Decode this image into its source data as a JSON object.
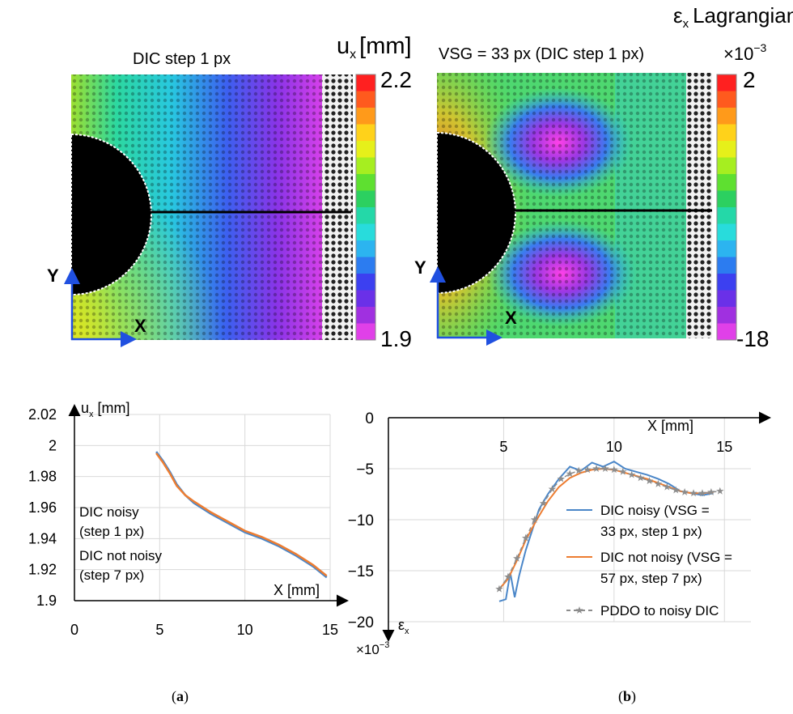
{
  "panel_a_map": {
    "title": "DIC step 1 px",
    "colorbar_label": "u",
    "colorbar_label_sub": "x",
    "colorbar_unit": "[mm]",
    "colorbar_max": "2.2",
    "colorbar_min": "1.9",
    "axis_y": "Y",
    "axis_x": "X"
  },
  "panel_b_map": {
    "title": "VSG = 33 px (DIC step 1 px)",
    "quantity": "ε",
    "quantity_sub": "x",
    "quantity_name": "Lagrangian",
    "multiplier": "×10",
    "multiplier_exp": "−3",
    "colorbar_max": "2",
    "colorbar_min": "-18",
    "axis_y": "Y",
    "axis_x": "X"
  },
  "colormap": [
    "#ff2020",
    "#ff5a1e",
    "#ff9a1a",
    "#ffd21a",
    "#e6f01a",
    "#a6ee20",
    "#5ee030",
    "#2cd060",
    "#24d8a8",
    "#28dcdc",
    "#2cb4f0",
    "#2c7cf0",
    "#3c40f0",
    "#6a30e8",
    "#a030e0",
    "#e040e8"
  ],
  "chart_data": [
    {
      "type": "line",
      "xlabel": "X [mm]",
      "ylabel": "u",
      "ylabel_sub": "x",
      "ylabel_unit": " [mm]",
      "xlim": [
        0,
        15
      ],
      "ylim": [
        1.9,
        2.02
      ],
      "xticks": [
        "0",
        "5",
        "10",
        "15"
      ],
      "yticks": [
        "2.02",
        "2",
        "1.98",
        "1.96",
        "1.94",
        "1.92",
        "1.9"
      ],
      "series": [
        {
          "name": "DIC noisy",
          "name2": "(step 1 px)",
          "color": "#4a86c8",
          "x": [
            4.8,
            5.2,
            5.6,
            6.0,
            6.5,
            7.0,
            8.0,
            9.0,
            10.0,
            11.0,
            12.0,
            13.0,
            14.0,
            14.8
          ],
          "y": [
            1.996,
            1.99,
            1.983,
            1.975,
            1.968,
            1.963,
            1.956,
            1.95,
            1.944,
            1.94,
            1.935,
            1.929,
            1.922,
            1.915
          ]
        },
        {
          "name": "DIC not noisy",
          "name2": "(step 7 px)",
          "color": "#ed7d31",
          "x": [
            4.8,
            5.2,
            5.6,
            6.0,
            6.5,
            7.0,
            8.0,
            9.0,
            10.0,
            11.0,
            12.0,
            13.0,
            14.0,
            14.8
          ],
          "y": [
            1.995,
            1.989,
            1.982,
            1.974,
            1.968,
            1.964,
            1.957,
            1.951,
            1.945,
            1.941,
            1.936,
            1.93,
            1.923,
            1.916
          ]
        }
      ],
      "grid": true,
      "legend_position": "lower-left"
    },
    {
      "type": "line",
      "xlabel": "X  [mm]",
      "ylabel": "ε",
      "ylabel_sub": "x",
      "multiplier": "×10",
      "multiplier_exp": "−3",
      "xlim": [
        0,
        15
      ],
      "ylim": [
        -20,
        0
      ],
      "xticks": [
        "5",
        "10",
        "15"
      ],
      "yticks": [
        "0",
        "-5",
        "-10",
        "-15",
        "-20"
      ],
      "series": [
        {
          "name": "DIC noisy (VSG =",
          "name2": "33 px, step 1 px)",
          "color": "#4a86c8",
          "x": [
            4.8,
            5.1,
            5.3,
            5.5,
            5.7,
            6.0,
            6.3,
            6.6,
            7.0,
            7.5,
            8.0,
            8.5,
            9.0,
            9.5,
            10.0,
            10.5,
            11.0,
            11.5,
            12.0,
            12.5,
            13.0,
            13.5,
            14.0,
            14.5
          ],
          "y": [
            -18.0,
            -17.8,
            -15.2,
            -17.6,
            -15.5,
            -13.0,
            -11.0,
            -9.0,
            -7.5,
            -6.0,
            -4.8,
            -5.2,
            -4.4,
            -4.8,
            -4.3,
            -5.0,
            -5.3,
            -5.6,
            -6.0,
            -6.5,
            -7.2,
            -7.4,
            -7.6,
            -7.4
          ]
        },
        {
          "name": "DIC not noisy (VSG =",
          "name2": "57 px, step 7 px)",
          "color": "#ed7d31",
          "x": [
            4.8,
            5.2,
            5.6,
            6.0,
            6.5,
            7.0,
            7.5,
            8.0,
            8.5,
            9.0,
            9.5,
            10.0,
            10.5,
            11.0,
            11.5,
            12.0,
            12.5,
            13.0,
            13.5,
            14.0,
            14.5
          ],
          "y": [
            -16.8,
            -15.8,
            -14.0,
            -12.0,
            -10.0,
            -8.2,
            -6.8,
            -5.9,
            -5.4,
            -5.1,
            -5.0,
            -5.1,
            -5.4,
            -5.7,
            -6.0,
            -6.4,
            -6.8,
            -7.2,
            -7.4,
            -7.4,
            -7.3
          ]
        },
        {
          "name": "PDDO to noisy DIC",
          "color": "#8c8c8c",
          "dashed": true,
          "markers": "star",
          "x": [
            4.8,
            5.2,
            5.6,
            6.0,
            6.4,
            6.8,
            7.2,
            7.6,
            8.0,
            8.4,
            8.8,
            9.2,
            9.6,
            10.0,
            10.4,
            10.8,
            11.2,
            11.6,
            12.0,
            12.4,
            12.8,
            13.2,
            13.6,
            14.0,
            14.4,
            14.8
          ],
          "y": [
            -16.8,
            -15.6,
            -13.8,
            -11.8,
            -10.0,
            -8.4,
            -7.0,
            -6.0,
            -5.5,
            -5.2,
            -5.1,
            -5.0,
            -5.0,
            -5.1,
            -5.3,
            -5.6,
            -5.9,
            -6.2,
            -6.5,
            -6.8,
            -7.1,
            -7.3,
            -7.4,
            -7.4,
            -7.3,
            -7.2
          ]
        }
      ],
      "grid": true,
      "legend_position": "right"
    }
  ],
  "captions": {
    "a": "a",
    "b": "b"
  }
}
